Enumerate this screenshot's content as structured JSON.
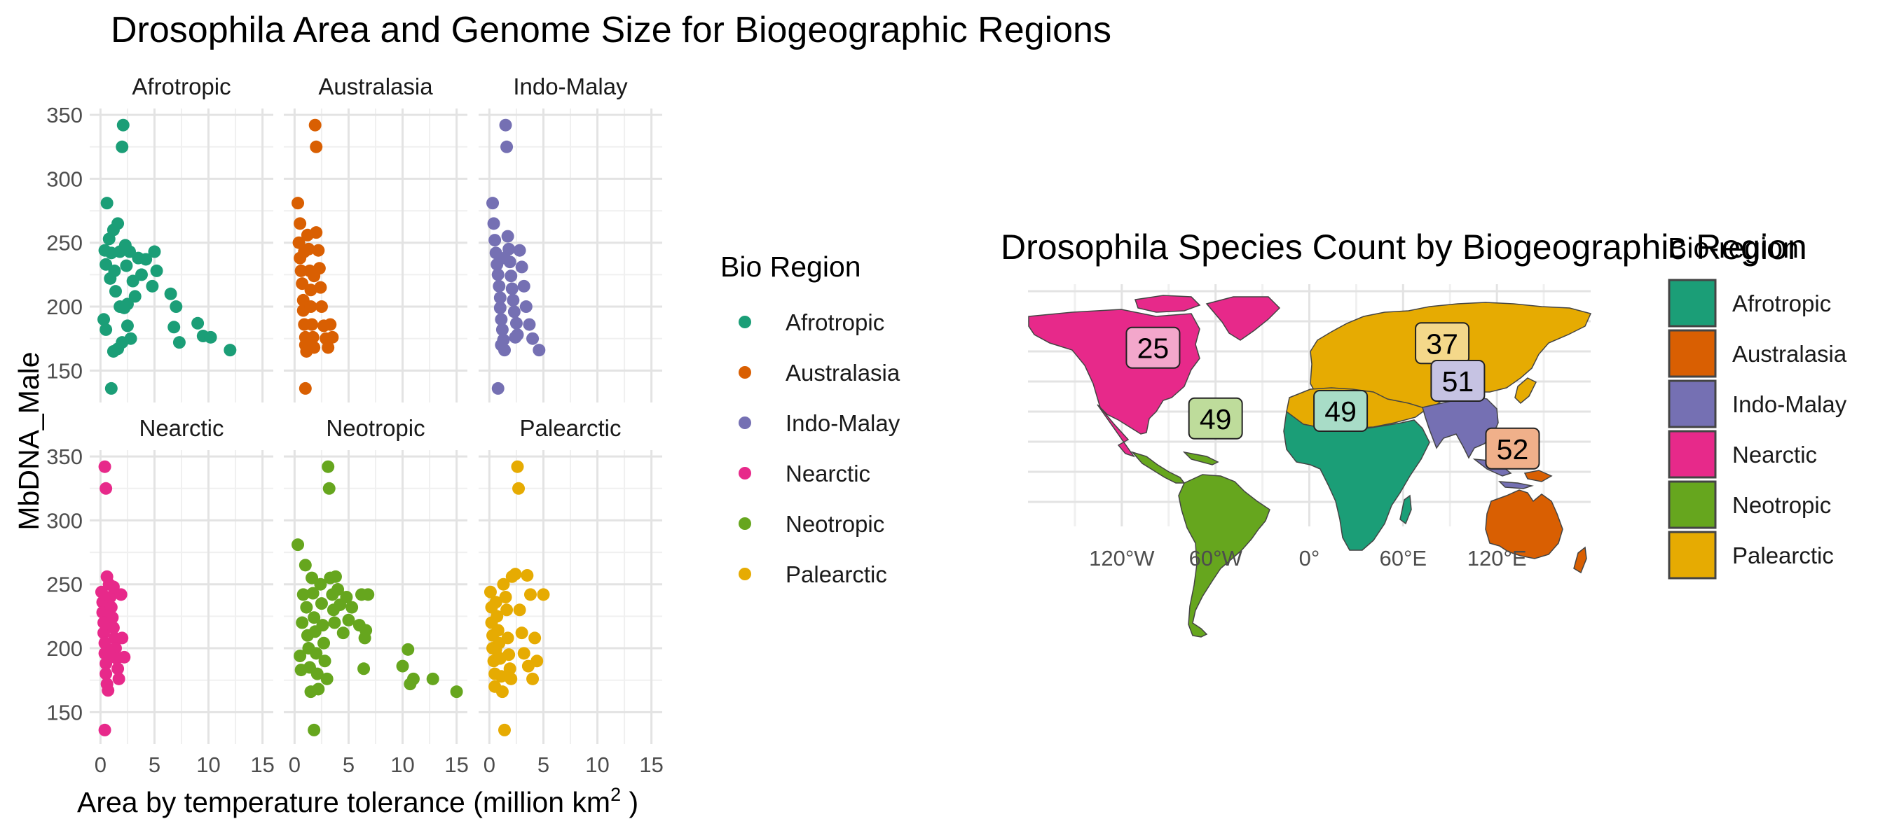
{
  "title": "Drosophila Area and Genome Size for Biogeographic Regions",
  "colors": {
    "Afrotropic": "#1b9e77",
    "Australasia": "#d95f02",
    "Indo-Malay": "#7570b3",
    "Nearctic": "#e7298a",
    "Neotropic": "#66a61e",
    "Palearctic": "#e6ab02"
  },
  "scatter": {
    "ylabel": "MbDNA_Male",
    "xlabel_main": "Area by temperature tolerance (million km",
    "xlabel_sup": "2",
    "xlabel_tail": " )",
    "x_ticks": [
      "0",
      "5",
      "10",
      "15"
    ],
    "y_ticks": [
      "150",
      "200",
      "250",
      "300",
      "350"
    ]
  },
  "legend": {
    "title": "Bio Region",
    "items": [
      "Afrotropic",
      "Australasia",
      "Indo-Malay",
      "Nearctic",
      "Neotropic",
      "Palearctic"
    ]
  },
  "map": {
    "title": "Drosophila Species Count by Biogeographic Region",
    "legend_title": "Bio-region",
    "legend_items": [
      "Afrotropic",
      "Australasia",
      "Indo-Malay",
      "Nearctic",
      "Neotropic",
      "Palearctic"
    ],
    "lon_ticks": [
      "120°W",
      "60°W",
      "0°",
      "60°E",
      "120°E"
    ]
  },
  "chart_data": [
    {
      "type": "scatter",
      "title": "Drosophila Area and Genome Size for Biogeographic Regions",
      "xlabel": "Area by temperature tolerance (million km2 )",
      "ylabel": "MbDNA_Male",
      "xlim": [
        -1,
        16
      ],
      "ylim": [
        125,
        355
      ],
      "grid": true,
      "legend_position": "right",
      "facets": [
        {
          "name": "Afrotropic",
          "points": [
            [
              0.3,
              190
            ],
            [
              0.5,
              182
            ],
            [
              0.8,
              253
            ],
            [
              0.5,
              233
            ],
            [
              0.6,
              281
            ],
            [
              0.9,
              222
            ],
            [
              1.0,
              242
            ],
            [
              1.2,
              260
            ],
            [
              1.3,
              228
            ],
            [
              1.4,
              212
            ],
            [
              1.6,
              167
            ],
            [
              1.6,
              265
            ],
            [
              1.8,
              243
            ],
            [
              1.8,
              200
            ],
            [
              2.0,
              172
            ],
            [
              2.0,
              325
            ],
            [
              2.1,
              342
            ],
            [
              2.3,
              248
            ],
            [
              2.4,
              232
            ],
            [
              2.5,
              202
            ],
            [
              2.5,
              185
            ],
            [
              2.7,
              243
            ],
            [
              2.8,
              175
            ],
            [
              3.0,
              220
            ],
            [
              3.2,
              208
            ],
            [
              3.5,
              238
            ],
            [
              3.8,
              225
            ],
            [
              4.2,
              237
            ],
            [
              4.8,
              216
            ],
            [
              5.0,
              243
            ],
            [
              5.2,
              228
            ],
            [
              6.5,
              210
            ],
            [
              6.8,
              184
            ],
            [
              7.0,
              200
            ],
            [
              7.3,
              172
            ],
            [
              9.0,
              187
            ],
            [
              9.5,
              177
            ],
            [
              10.2,
              176
            ],
            [
              12.0,
              166
            ],
            [
              1.0,
              136
            ],
            [
              1.2,
              165
            ],
            [
              0.4,
              244
            ],
            [
              2.2,
              199
            ]
          ]
        },
        {
          "name": "Australasia",
          "points": [
            [
              0.3,
              281
            ],
            [
              0.4,
              250
            ],
            [
              0.5,
              265
            ],
            [
              0.5,
              238
            ],
            [
              0.6,
              228
            ],
            [
              0.7,
              218
            ],
            [
              0.8,
              205
            ],
            [
              0.8,
              197
            ],
            [
              0.9,
              186
            ],
            [
              1.0,
              176
            ],
            [
              1.0,
              170
            ],
            [
              1.1,
              165
            ],
            [
              1.2,
              256
            ],
            [
              1.3,
              245
            ],
            [
              1.4,
              228
            ],
            [
              1.5,
              213
            ],
            [
              1.5,
              200
            ],
            [
              1.6,
              186
            ],
            [
              1.7,
              176
            ],
            [
              1.8,
              168
            ],
            [
              1.9,
              342
            ],
            [
              2.0,
              325
            ],
            [
              2.0,
              258
            ],
            [
              2.2,
              244
            ],
            [
              2.3,
              230
            ],
            [
              2.4,
              215
            ],
            [
              2.5,
              200
            ],
            [
              2.7,
              185
            ],
            [
              2.9,
              175
            ],
            [
              3.1,
              168
            ],
            [
              3.3,
              186
            ],
            [
              3.5,
              176
            ],
            [
              1.0,
              136
            ],
            [
              0.9,
              243
            ],
            [
              1.8,
              224
            ]
          ]
        },
        {
          "name": "Indo-Malay",
          "points": [
            [
              0.3,
              281
            ],
            [
              0.4,
              265
            ],
            [
              0.5,
              252
            ],
            [
              0.6,
              242
            ],
            [
              0.7,
              233
            ],
            [
              0.8,
              225
            ],
            [
              0.9,
              216
            ],
            [
              1.0,
              207
            ],
            [
              1.0,
              199
            ],
            [
              1.1,
              190
            ],
            [
              1.2,
              182
            ],
            [
              1.3,
              174
            ],
            [
              1.4,
              166
            ],
            [
              1.5,
              342
            ],
            [
              1.6,
              325
            ],
            [
              1.7,
              255
            ],
            [
              1.8,
              245
            ],
            [
              1.9,
              235
            ],
            [
              2.0,
              224
            ],
            [
              2.1,
              214
            ],
            [
              2.2,
              205
            ],
            [
              2.3,
              196
            ],
            [
              2.5,
              187
            ],
            [
              2.6,
              178
            ],
            [
              2.8,
              244
            ],
            [
              3.0,
              231
            ],
            [
              3.2,
              216
            ],
            [
              3.4,
              200
            ],
            [
              3.7,
              186
            ],
            [
              4.0,
              175
            ],
            [
              4.6,
              166
            ],
            [
              0.8,
              136
            ],
            [
              1.4,
              238
            ],
            [
              2.4,
              176
            ],
            [
              1.1,
              170
            ]
          ]
        },
        {
          "name": "Nearctic",
          "points": [
            [
              0.1,
              244
            ],
            [
              0.2,
              236
            ],
            [
              0.2,
              228
            ],
            [
              0.3,
              220
            ],
            [
              0.3,
              212
            ],
            [
              0.4,
              204
            ],
            [
              0.4,
              196
            ],
            [
              0.5,
              188
            ],
            [
              0.5,
              180
            ],
            [
              0.6,
              172
            ],
            [
              0.7,
              167
            ],
            [
              0.4,
              342
            ],
            [
              0.5,
              325
            ],
            [
              0.6,
              256
            ],
            [
              0.8,
              250
            ],
            [
              0.9,
              240
            ],
            [
              1.0,
              232
            ],
            [
              1.1,
              224
            ],
            [
              1.2,
              216
            ],
            [
              1.3,
              208
            ],
            [
              1.4,
              200
            ],
            [
              1.5,
              192
            ],
            [
              1.6,
              184
            ],
            [
              1.7,
              176
            ],
            [
              1.9,
              242
            ],
            [
              2.0,
              208
            ],
            [
              2.2,
              193
            ],
            [
              0.4,
              136
            ],
            [
              0.8,
              196
            ],
            [
              1.2,
              248
            ]
          ]
        },
        {
          "name": "Neotropic",
          "points": [
            [
              0.3,
              281
            ],
            [
              0.5,
              194
            ],
            [
              0.6,
              183
            ],
            [
              0.7,
              220
            ],
            [
              0.8,
              242
            ],
            [
              1.0,
              265
            ],
            [
              1.1,
              232
            ],
            [
              1.2,
              210
            ],
            [
              1.3,
              200
            ],
            [
              1.4,
              185
            ],
            [
              1.5,
              166
            ],
            [
              1.6,
              255
            ],
            [
              1.7,
              243
            ],
            [
              1.8,
              224
            ],
            [
              1.9,
              213
            ],
            [
              2.0,
              196
            ],
            [
              2.1,
              180
            ],
            [
              2.2,
              168
            ],
            [
              2.4,
              250
            ],
            [
              2.5,
              235
            ],
            [
              2.6,
              218
            ],
            [
              2.7,
              204
            ],
            [
              2.8,
              190
            ],
            [
              3.0,
              176
            ],
            [
              3.1,
              342
            ],
            [
              3.2,
              325
            ],
            [
              3.3,
              255
            ],
            [
              3.5,
              242
            ],
            [
              3.6,
              230
            ],
            [
              3.7,
              220
            ],
            [
              3.8,
              256
            ],
            [
              4.0,
              246
            ],
            [
              4.2,
              234
            ],
            [
              4.5,
              212
            ],
            [
              4.8,
              240
            ],
            [
              5.0,
              222
            ],
            [
              5.3,
              232
            ],
            [
              6.0,
              218
            ],
            [
              6.2,
              242
            ],
            [
              6.4,
              184
            ],
            [
              6.5,
              208
            ],
            [
              6.6,
              214
            ],
            [
              6.8,
              242
            ],
            [
              10.0,
              186
            ],
            [
              10.5,
              199
            ],
            [
              10.7,
              172
            ],
            [
              11.0,
              176
            ],
            [
              12.8,
              176
            ],
            [
              15.0,
              166
            ],
            [
              1.8,
              136
            ]
          ]
        },
        {
          "name": "Palearctic",
          "points": [
            [
              0.1,
              244
            ],
            [
              0.2,
              232
            ],
            [
              0.2,
              220
            ],
            [
              0.3,
              210
            ],
            [
              0.3,
              200
            ],
            [
              0.4,
              190
            ],
            [
              0.5,
              180
            ],
            [
              0.5,
              170
            ],
            [
              0.6,
              236
            ],
            [
              0.7,
              225
            ],
            [
              0.8,
              214
            ],
            [
              0.9,
              204
            ],
            [
              1.0,
              192
            ],
            [
              1.1,
              178
            ],
            [
              1.2,
              166
            ],
            [
              1.3,
              250
            ],
            [
              1.5,
              240
            ],
            [
              1.6,
              230
            ],
            [
              1.7,
              208
            ],
            [
              1.8,
              195
            ],
            [
              1.9,
              184
            ],
            [
              2.0,
              176
            ],
            [
              2.1,
              256
            ],
            [
              2.4,
              258
            ],
            [
              2.6,
              342
            ],
            [
              2.7,
              325
            ],
            [
              2.8,
              230
            ],
            [
              3.0,
              212
            ],
            [
              3.2,
              196
            ],
            [
              3.5,
              257
            ],
            [
              3.6,
              186
            ],
            [
              3.8,
              242
            ],
            [
              4.0,
              176
            ],
            [
              4.2,
              208
            ],
            [
              4.4,
              190
            ],
            [
              5.0,
              242
            ],
            [
              1.4,
              136
            ],
            [
              0.6,
              199
            ]
          ]
        }
      ]
    },
    {
      "type": "map",
      "title": "Drosophila Species Count by Biogeographic Region",
      "legend_title": "Bio-region",
      "x_ticks": [
        "120°W",
        "60°W",
        "0°",
        "60°E",
        "120°E"
      ],
      "labels": [
        {
          "region": "Nearctic",
          "count": 25,
          "lon": -100,
          "lat": 42
        },
        {
          "region": "Palearctic",
          "count": 37,
          "lon": 85,
          "lat": 45
        },
        {
          "region": "Indo-Malay",
          "count": 51,
          "lon": 95,
          "lat": 20
        },
        {
          "region": "Afrotropic",
          "count": 49,
          "lon": 20,
          "lat": 0
        },
        {
          "region": "Neotropic",
          "count": 49,
          "lon": -60,
          "lat": -5
        },
        {
          "region": "Australasia",
          "count": 52,
          "lon": 130,
          "lat": -25
        }
      ]
    }
  ]
}
